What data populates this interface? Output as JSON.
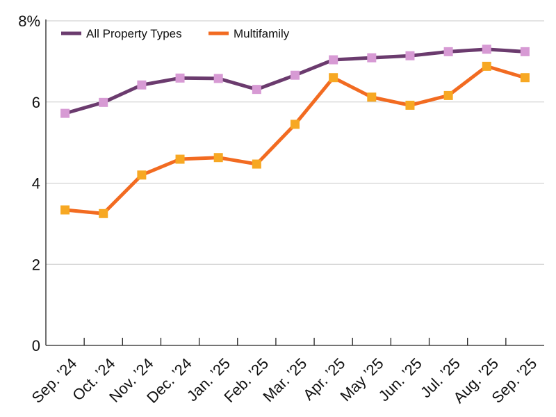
{
  "chart_data": {
    "type": "line",
    "title": "",
    "xlabel": "",
    "ylabel": "",
    "categories": [
      "Sep. ’24",
      "Oct. ’24",
      "Nov. ’24",
      "Dec. ’24",
      "Jan. ’25",
      "Feb. ’25",
      "Mar. ’25",
      "Apr. ’25",
      "May ’25",
      "Jun. ’25",
      "Jul. ’25",
      "Aug. ’25",
      "Sep. ’25"
    ],
    "ylim": [
      0,
      8
    ],
    "yticks": [
      "0",
      "2",
      "4",
      "6",
      "8%"
    ],
    "grid": true,
    "legend_position": "top-left",
    "series": [
      {
        "name": "All Property Types",
        "line_color": "#6b3b6e",
        "marker_color": "#d79ad4",
        "values": [
          5.72,
          5.99,
          6.42,
          6.59,
          6.58,
          6.31,
          6.66,
          7.04,
          7.09,
          7.14,
          7.24,
          7.3,
          7.24
        ]
      },
      {
        "name": "Multifamily",
        "line_color": "#f26b21",
        "marker_color": "#f7a823",
        "values": [
          3.34,
          3.25,
          4.2,
          4.59,
          4.63,
          4.47,
          5.45,
          6.6,
          6.12,
          5.92,
          6.16,
          6.88,
          6.6
        ]
      }
    ]
  }
}
